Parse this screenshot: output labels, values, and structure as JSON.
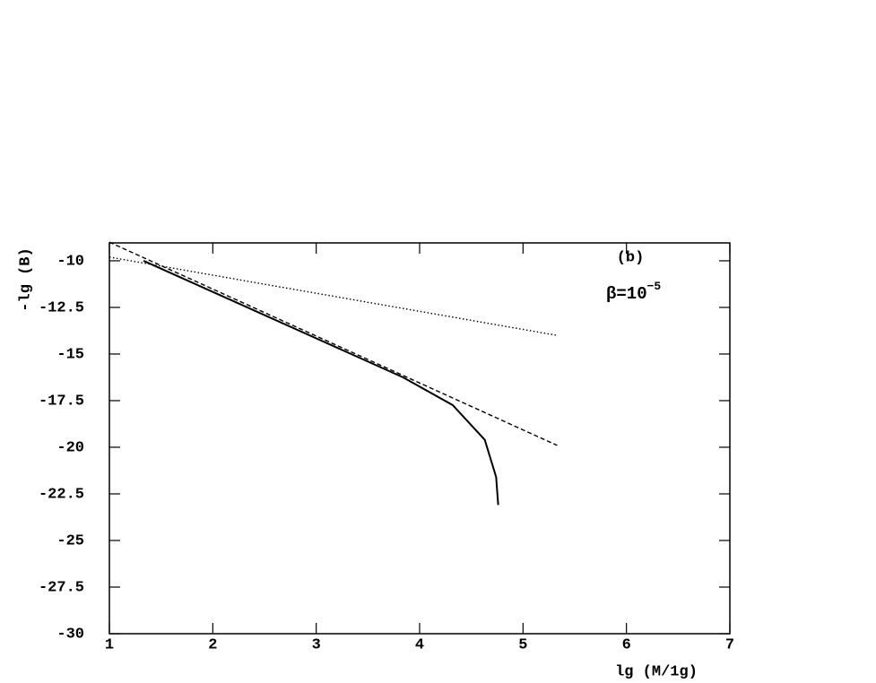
{
  "chart_data": {
    "type": "line",
    "xlabel": "lg (M/1g)",
    "ylabel": "-lg (B)",
    "annotation": "(b)",
    "annotation2": {
      "text": "β=10",
      "sup": "−5"
    },
    "xlim": [
      1,
      7
    ],
    "xticks": [
      1,
      2,
      3,
      4,
      5,
      6,
      7
    ],
    "ylim": [
      -30,
      -9.04
    ],
    "yticks": [
      -10,
      -12.5,
      -15,
      -17.5,
      -20,
      -22.5,
      -25,
      -27.5,
      -30
    ],
    "series": [
      {
        "x": [
          1.33,
          3.84,
          4.32,
          4.63,
          4.74,
          4.76
        ],
        "values": [
          -10.0,
          -16.25,
          -17.74,
          -19.6,
          -21.6,
          -23.1
        ],
        "color": "#000000",
        "line_style": "solid"
      },
      {
        "x": [
          1,
          5.33
        ],
        "values": [
          -9.0,
          -19.9
        ],
        "color": "#000000",
        "line_style": "dashed"
      },
      {
        "x": [
          1,
          5.33
        ],
        "values": [
          -9.8,
          -14.0
        ],
        "color": "#000000",
        "line_style": "dotted"
      }
    ]
  }
}
